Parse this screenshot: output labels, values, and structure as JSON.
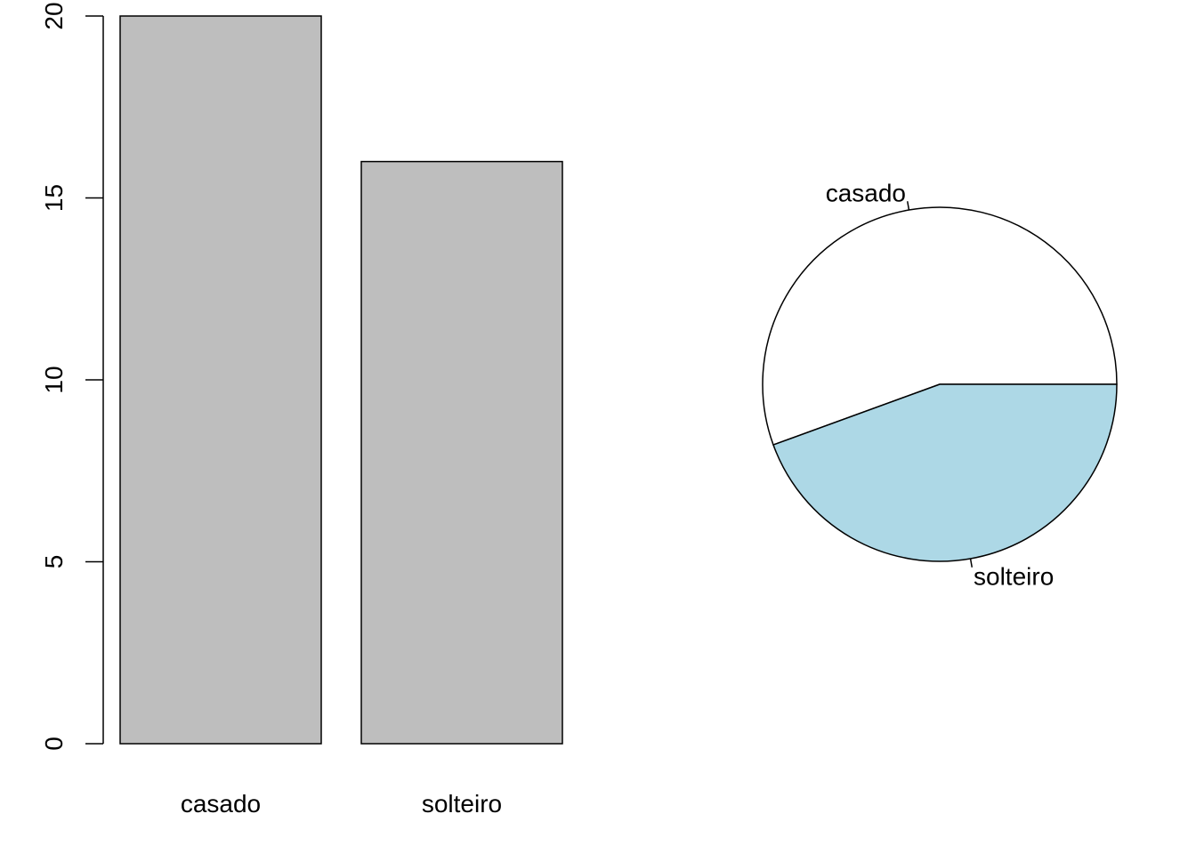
{
  "chart_data": [
    {
      "type": "bar",
      "categories": [
        "casado",
        "solteiro"
      ],
      "values": [
        20,
        16
      ],
      "ylim": [
        0,
        20
      ],
      "yticks": [
        "0",
        "5",
        "10",
        "15",
        "20"
      ],
      "bar_color": "#bebebe",
      "grid": false
    },
    {
      "type": "pie",
      "labels": [
        "casado",
        "solteiro"
      ],
      "values": [
        20,
        16
      ],
      "colors": [
        "#ffffff",
        "#add8e6"
      ],
      "start": "3 o'clock, counter-clockwise"
    }
  ]
}
